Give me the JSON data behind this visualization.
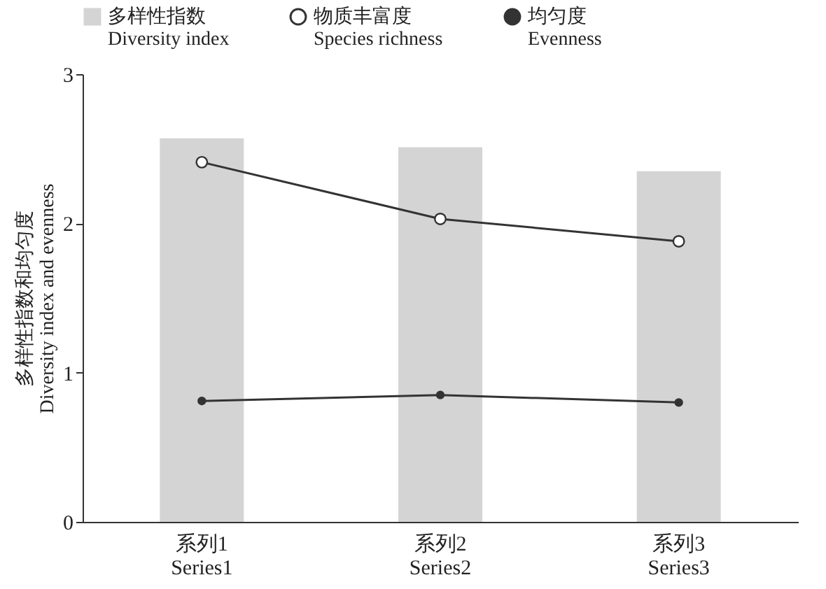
{
  "chart_data": {
    "type": "bar",
    "categories": [
      "系列1\nSeries1",
      "系列2\nSeries2",
      "系列3\nSeries3"
    ],
    "ylabel": "多样性指数和均匀度\nDiversity index and evenness",
    "ylim": [
      0,
      3
    ],
    "yticks": [
      0,
      1,
      2,
      3
    ],
    "legend": "top",
    "grid": false,
    "series": [
      {
        "name": "多样性指数\nDiversity index",
        "color": "#d4d4d4",
        "values": [
          2.57,
          2.51,
          2.35
        ]
      },
      {
        "name": "物质丰富度\nSpecies richness",
        "type": "line",
        "color": "#333333",
        "marker": "circle",
        "values": [
          2.41,
          2.03,
          1.88
        ]
      },
      {
        "name": "均匀度\nEvenness",
        "type": "line",
        "color": "#333333",
        "marker": "circle",
        "values": [
          0.81,
          0.85,
          0.8
        ]
      }
    ]
  }
}
